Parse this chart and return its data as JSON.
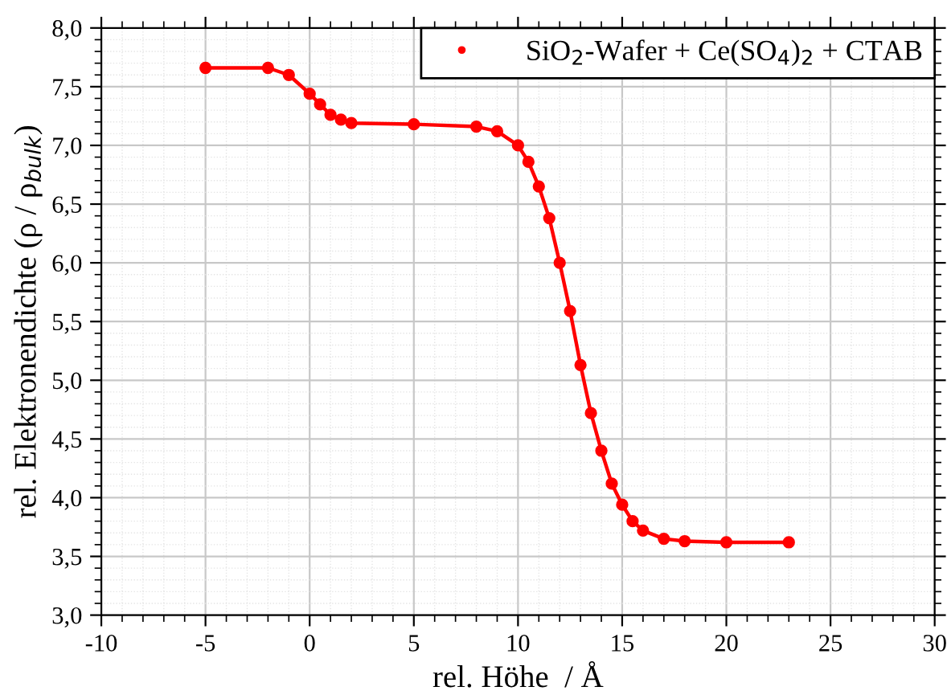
{
  "chart_data": {
    "type": "line",
    "xlabel": "rel. Höhe  / Å",
    "ylabel": "rel. Elektronendichte (ρ / ρ$_{bulk}$)",
    "x": [
      -5,
      -2,
      -1,
      0,
      0.5,
      1,
      1.5,
      2,
      5,
      8,
      9,
      10,
      10.5,
      11,
      11.5,
      12,
      12.5,
      13,
      13.5,
      14,
      14.5,
      15,
      15.5,
      16,
      17,
      18,
      20,
      23
    ],
    "series": [
      {
        "name": "SiO$_{2}$-Wafer + Ce(SO$_{4}$)$_{2}$ + CTAB",
        "color": "#ff0000",
        "values": [
          7.66,
          7.66,
          7.6,
          7.44,
          7.35,
          7.26,
          7.22,
          7.19,
          7.18,
          7.16,
          7.12,
          7.0,
          6.86,
          6.65,
          6.38,
          6.0,
          5.59,
          5.13,
          4.72,
          4.4,
          4.12,
          3.94,
          3.8,
          3.72,
          3.65,
          3.63,
          3.62,
          3.62
        ]
      }
    ],
    "xlim": [
      -10,
      30
    ],
    "xticks": [
      -10,
      -5,
      0,
      5,
      10,
      15,
      20,
      25,
      30
    ],
    "ylim": [
      3.0,
      8.0
    ],
    "yticks": [
      {
        "value": 3.0,
        "label": "3,0"
      },
      {
        "value": 3.5,
        "label": "3,5"
      },
      {
        "value": 4.0,
        "label": "4,0"
      },
      {
        "value": 4.5,
        "label": "4,5"
      },
      {
        "value": 5.0,
        "label": "5,0"
      },
      {
        "value": 5.5,
        "label": "5,5"
      },
      {
        "value": 6.0,
        "label": "6,0"
      },
      {
        "value": 6.5,
        "label": "6,5"
      },
      {
        "value": 7.0,
        "label": "7,0"
      },
      {
        "value": 7.5,
        "label": "7,5"
      },
      {
        "value": 8.0,
        "label": "8,0"
      }
    ],
    "grid": true,
    "legend": "top right",
    "marker": "circle",
    "line_style": "solid"
  }
}
